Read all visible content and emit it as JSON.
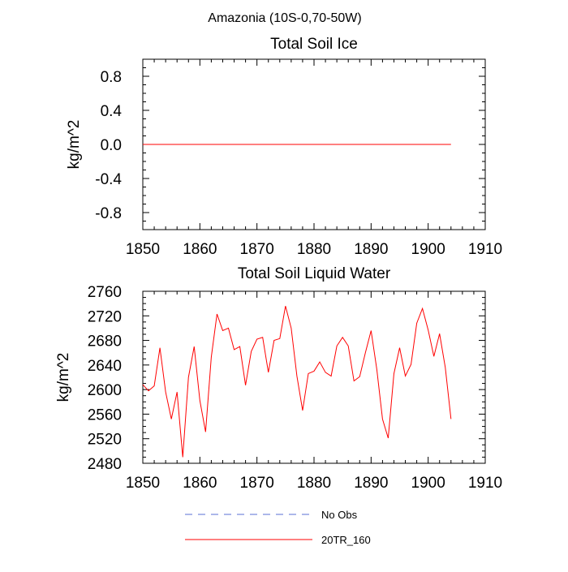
{
  "figure": {
    "title": "Amazonia (10S-0,70-50W)"
  },
  "chart_data": [
    {
      "type": "line",
      "title": "Total Soil Ice",
      "xlabel": "",
      "ylabel": "kg/m^2",
      "xlim": [
        1850,
        1910
      ],
      "ylim": [
        -1.0,
        1.0
      ],
      "xticks": [
        "1850",
        "1860",
        "1870",
        "1880",
        "1890",
        "1900",
        "1910"
      ],
      "yticks": [
        "0.8",
        "0.4",
        "0.0",
        "-0.4",
        "-0.8"
      ],
      "grid": false,
      "series": [
        {
          "name": "20TR_160",
          "color": "#ff0000",
          "x": [
            1850,
            1904
          ],
          "values": [
            0.0,
            0.0
          ]
        }
      ]
    },
    {
      "type": "line",
      "title": "Total Soil Liquid Water",
      "xlabel": "",
      "ylabel": "kg/m^2",
      "xlim": [
        1850,
        1910
      ],
      "ylim": [
        2480,
        2760
      ],
      "xticks": [
        "1850",
        "1860",
        "1870",
        "1880",
        "1890",
        "1900",
        "1910"
      ],
      "yticks": [
        "2760",
        "2720",
        "2680",
        "2640",
        "2600",
        "2560",
        "2520",
        "2480"
      ],
      "grid": false,
      "series": [
        {
          "name": "20TR_160",
          "color": "#ff0000",
          "x": [
            1850,
            1851,
            1852,
            1853,
            1854,
            1855,
            1856,
            1857,
            1858,
            1859,
            1860,
            1861,
            1862,
            1863,
            1864,
            1865,
            1866,
            1867,
            1868,
            1869,
            1870,
            1871,
            1872,
            1873,
            1874,
            1875,
            1876,
            1877,
            1878,
            1879,
            1880,
            1881,
            1882,
            1883,
            1884,
            1885,
            1886,
            1887,
            1888,
            1889,
            1890,
            1891,
            1892,
            1893,
            1894,
            1895,
            1896,
            1897,
            1898,
            1899,
            1900,
            1901,
            1902,
            1903,
            1904
          ],
          "values": [
            2608,
            2598,
            2606,
            2668,
            2596,
            2552,
            2596,
            2490,
            2620,
            2670,
            2582,
            2531,
            2653,
            2723,
            2696,
            2700,
            2665,
            2670,
            2607,
            2662,
            2682,
            2685,
            2628,
            2680,
            2683,
            2736,
            2700,
            2622,
            2566,
            2626,
            2630,
            2645,
            2628,
            2622,
            2671,
            2685,
            2671,
            2614,
            2621,
            2660,
            2696,
            2633,
            2552,
            2521,
            2626,
            2668,
            2622,
            2641,
            2708,
            2732,
            2697,
            2654,
            2691,
            2636,
            2552
          ]
        }
      ]
    }
  ],
  "legend": {
    "items": [
      {
        "label": "No Obs",
        "color": "#5a6fd6",
        "style": "dashed"
      },
      {
        "label": "20TR_160",
        "color": "#ff0000",
        "style": "solid"
      }
    ]
  }
}
